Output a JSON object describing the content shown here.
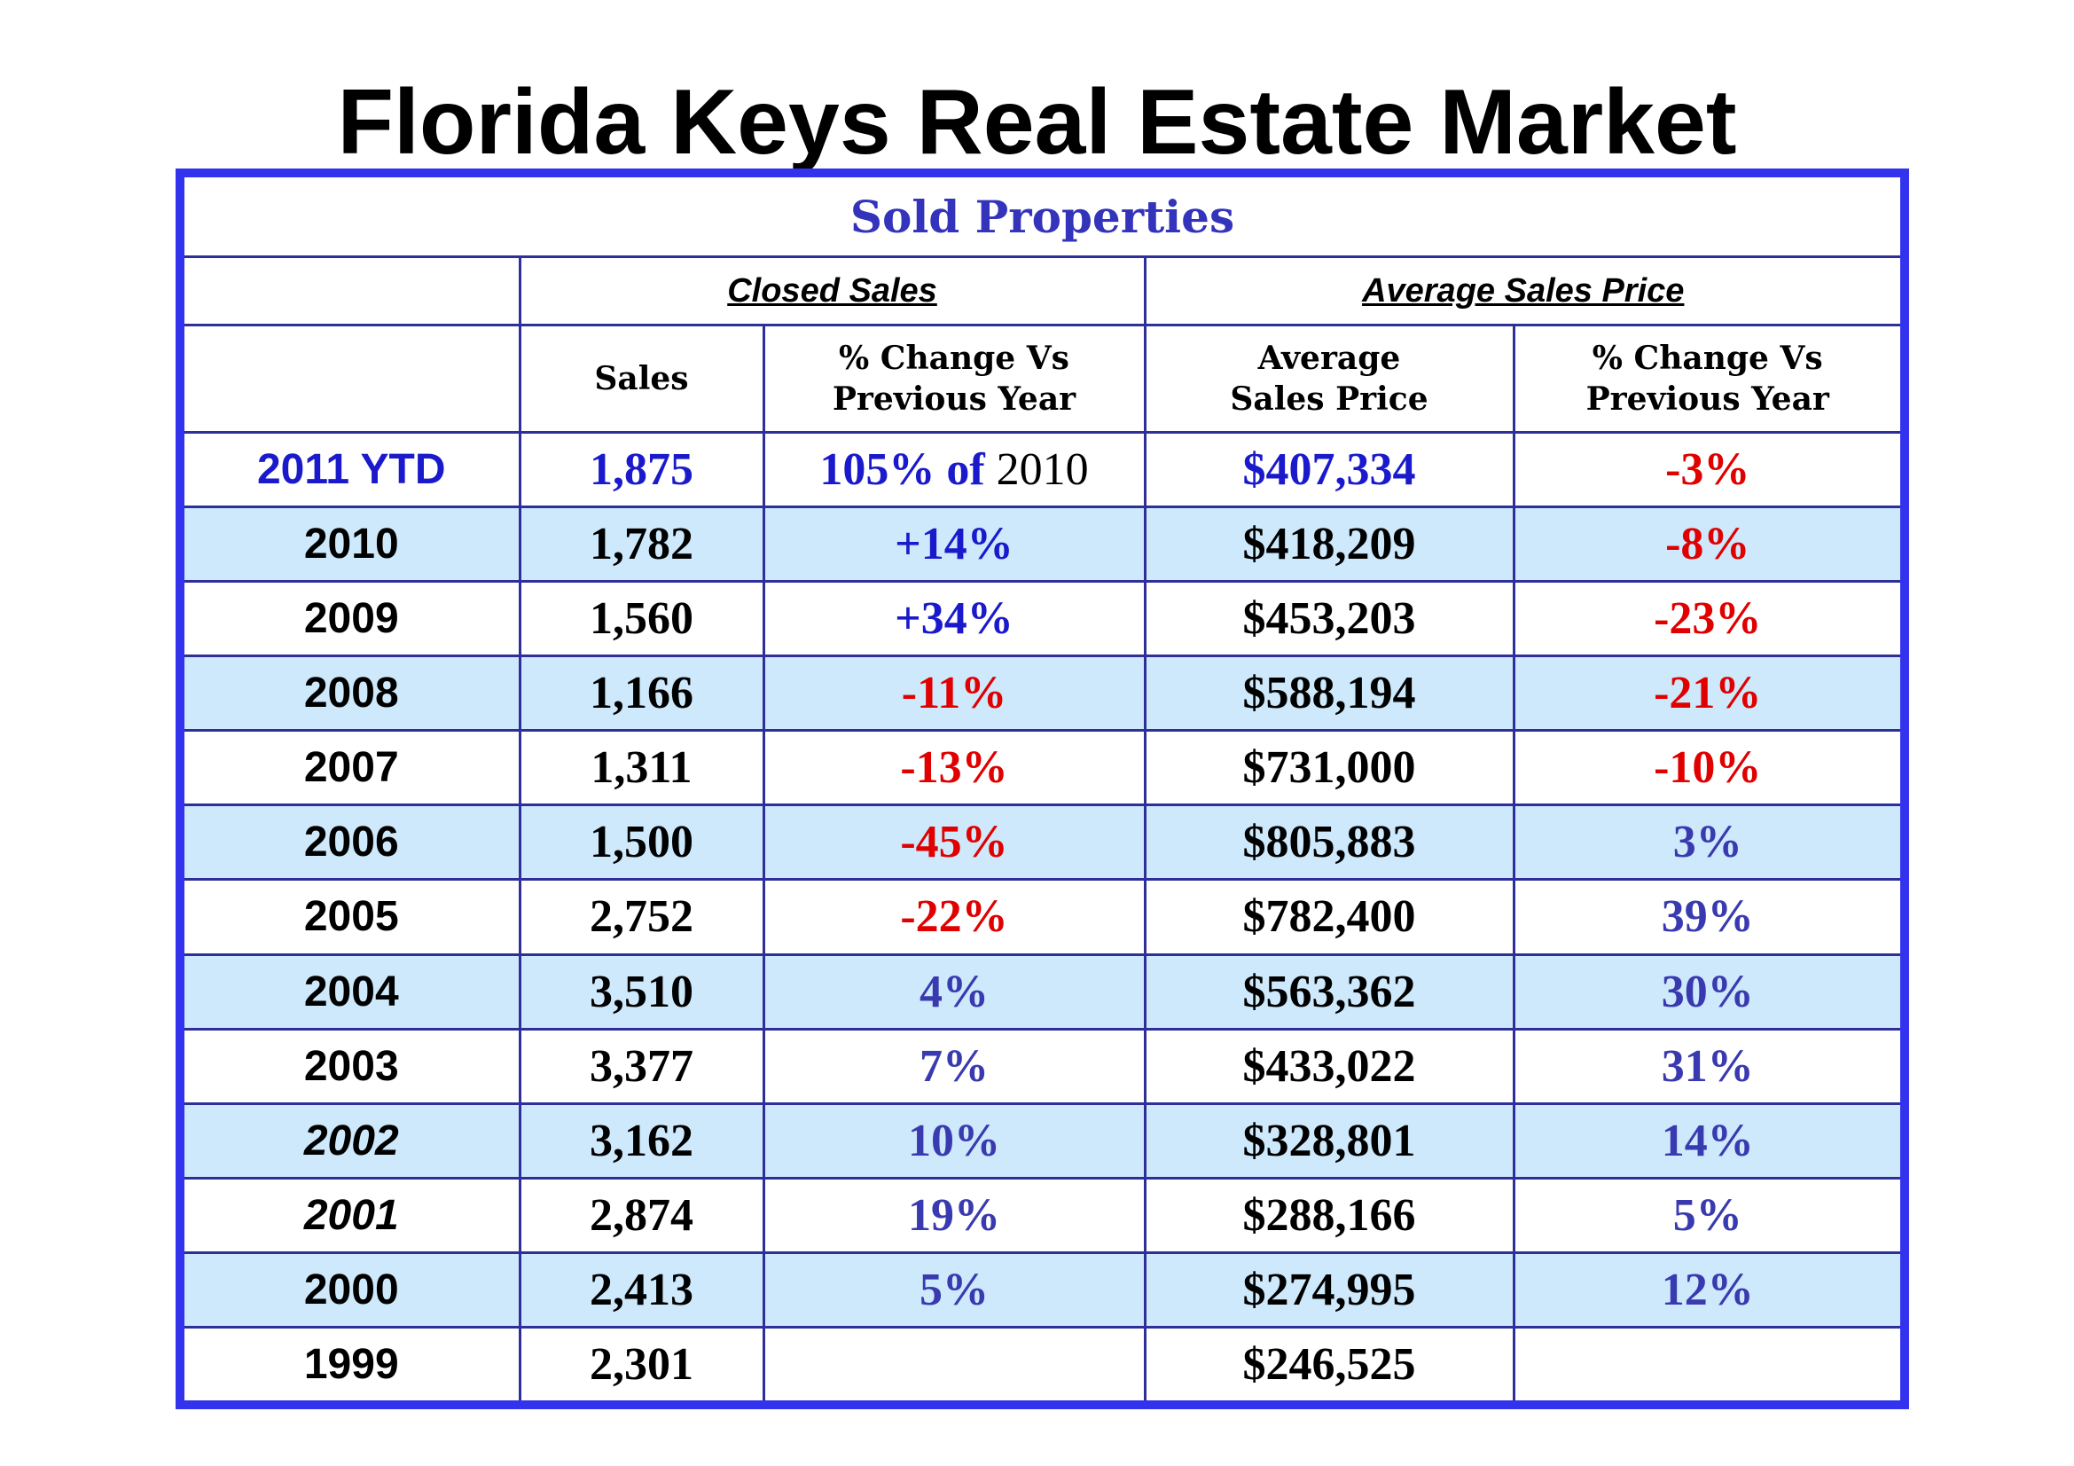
{
  "title": "Florida Keys Real Estate Market",
  "table": {
    "banner": "Sold Properties",
    "groups": {
      "closed_sales": "Closed Sales",
      "average_sales_price": "Average Sales Price"
    },
    "columns": {
      "year": "",
      "sales": "Sales",
      "sales_change_line1": "% Change Vs",
      "sales_change_line2": "Previous Year",
      "avg_price_line1": "Average",
      "avg_price_line2": "Sales Price",
      "price_change_line1": "% Change Vs",
      "price_change_line2": "Previous Year"
    },
    "ytd_row": {
      "year": "2011 YTD",
      "sales": "1,875",
      "sales_change_part1": "105% of",
      "sales_change_part2": " 2010",
      "avg_price": "$407,334",
      "price_change": "-3%"
    },
    "rows": [
      {
        "year": "2010",
        "sales": "1,782",
        "sales_change": "+14%",
        "avg_price": "$418,209",
        "price_change": "-8%"
      },
      {
        "year": "2009",
        "sales": "1,560",
        "sales_change": "+34%",
        "avg_price": "$453,203",
        "price_change": "-23%"
      },
      {
        "year": "2008",
        "sales": "1,166",
        "sales_change": "-11%",
        "avg_price": "$588,194",
        "price_change": "-21%"
      },
      {
        "year": "2007",
        "sales": "1,311",
        "sales_change": "-13%",
        "avg_price": "$731,000",
        "price_change": "-10%"
      },
      {
        "year": "2006",
        "sales": "1,500",
        "sales_change": "-45%",
        "avg_price": "$805,883",
        "price_change": "3%"
      },
      {
        "year": "2005",
        "sales": "2,752",
        "sales_change": "-22%",
        "avg_price": "$782,400",
        "price_change": "39%"
      },
      {
        "year": "2004",
        "sales": "3,510",
        "sales_change": "4%",
        "avg_price": "$563,362",
        "price_change": "30%"
      },
      {
        "year": "2003",
        "sales": "3,377",
        "sales_change": "7%",
        "avg_price": "$433,022",
        "price_change": "31%"
      },
      {
        "year": "2002",
        "sales": "3,162",
        "sales_change": "10%",
        "avg_price": "$328,801",
        "price_change": "14%"
      },
      {
        "year": "2001",
        "sales": "2,874",
        "sales_change": "19%",
        "avg_price": "$288,166",
        "price_change": "5%"
      },
      {
        "year": "2000",
        "sales": "2,413",
        "sales_change": "5%",
        "avg_price": "$274,995",
        "price_change": "12%"
      },
      {
        "year": "1999",
        "sales": "2,301",
        "sales_change": "",
        "avg_price": "$246,525",
        "price_change": ""
      }
    ]
  },
  "colors": {
    "frame_border": "#3333ee",
    "grid_line": "#2f2f9a",
    "shaded_row": "#cde9fb",
    "banner_text": "#3333bb",
    "positive_text": "#1a1acc",
    "positive_alt_text": "#3a3ab0",
    "negative_text": "#e00000"
  }
}
